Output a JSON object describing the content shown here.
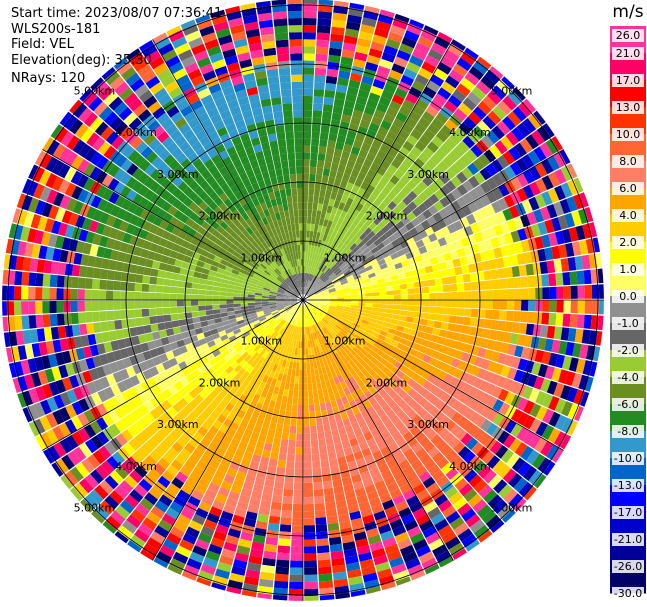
{
  "header": {
    "start_time": "Start time: 2023/08/07 07:36:41",
    "device": "WLS200s-181",
    "field": "Field: VEL",
    "elevation": "Elevation(deg): 35.30",
    "nrays": "NRays: 120"
  },
  "colorbar": {
    "unit": "m/s",
    "labels": [
      "26.0",
      "21.0",
      "17.0",
      "13.0",
      "10.0",
      "8.0",
      "6.0",
      "4.0",
      "2.0",
      "1.0",
      "0.0",
      "-1.0",
      "-2.0",
      "-4.0",
      "-6.0",
      "-8.0",
      "-10.0",
      "-13.0",
      "-17.0",
      "-21.0",
      "-26.0",
      "-30.0"
    ],
    "colors": [
      "#ff3399",
      "#ff0066",
      "#ff0000",
      "#ff3300",
      "#ff6633",
      "#ff7f66",
      "#ffa500",
      "#ffcc00",
      "#ffff00",
      "#ffff66",
      "#909090",
      "#666666",
      "#99cc33",
      "#6b8e23",
      "#228b22",
      "#3399cc",
      "#0066cc",
      "#0000ff",
      "#0000cc",
      "#000099",
      "#000066"
    ]
  },
  "chart_data": {
    "type": "heatmap",
    "projection": "polar (PPI)",
    "field": "VEL",
    "units": "m/s",
    "nrays": 120,
    "elevation_deg": 35.3,
    "range_ring_labels": [
      "1.00km",
      "2.00km",
      "3.00km",
      "4.00km",
      "5.00km"
    ],
    "range_rings_km": [
      1,
      2,
      3,
      4,
      5
    ],
    "color_scale_min": -30.0,
    "color_scale_max": 26.0,
    "pattern": {
      "near_field": "velocity dipole: positive (yellow/orange/salmon) to the south-east, negative (green) to the north-west",
      "far_field": "noise speckle beyond about 3.5 km"
    }
  }
}
